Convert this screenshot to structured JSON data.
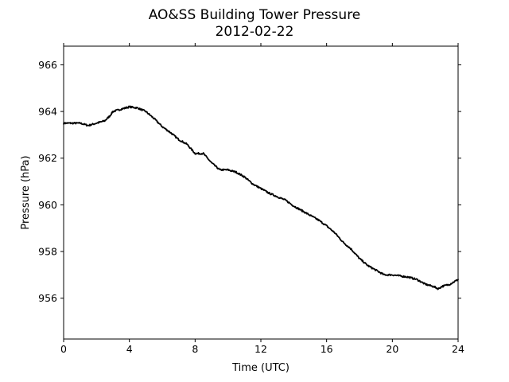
{
  "chart_data": {
    "type": "line",
    "title": "AO&SS Building Tower Pressure",
    "subtitle": "2012-02-22",
    "xlabel": "Time (UTC)",
    "ylabel": "Pressure (hPa)",
    "xlim": [
      0,
      24
    ],
    "ylim": [
      954.25,
      966.8
    ],
    "xticks": [
      0,
      4,
      8,
      12,
      16,
      20,
      24
    ],
    "xtick_labels": [
      "0",
      "4",
      "8",
      "12",
      "16",
      "20",
      "24"
    ],
    "yticks": [
      956,
      958,
      960,
      962,
      964,
      966
    ],
    "ytick_labels": [
      "956",
      "958",
      "960",
      "962",
      "964",
      "966"
    ],
    "grid": false,
    "legend": "none",
    "line_color": "#000000",
    "series": [
      {
        "x": [
          0,
          0.5,
          1.0,
          1.5,
          2.0,
          2.5,
          2.8,
          3.0,
          3.5,
          4.0,
          4.5,
          5.0,
          5.5,
          6.0,
          6.5,
          7.0,
          7.5,
          8.0,
          8.5,
          9.0,
          9.5,
          10.0,
          10.5,
          11.0,
          11.5,
          12.0,
          12.5,
          13.0,
          13.5,
          14.0,
          14.5,
          15.0,
          15.5,
          16.0,
          16.5,
          17.0,
          17.5,
          18.0,
          18.5,
          19.0,
          19.5,
          20.0,
          20.5,
          21.0,
          21.5,
          22.0,
          22.5,
          22.8,
          23.0,
          23.5,
          24.0
        ],
        "y": [
          963.5,
          963.5,
          963.5,
          963.4,
          963.5,
          963.6,
          963.8,
          964.0,
          964.1,
          964.2,
          964.15,
          964.0,
          963.7,
          963.35,
          963.1,
          962.8,
          962.6,
          962.2,
          962.2,
          961.8,
          961.5,
          961.5,
          961.4,
          961.2,
          960.9,
          960.7,
          960.5,
          960.35,
          960.2,
          959.95,
          959.75,
          959.55,
          959.35,
          959.1,
          958.8,
          958.4,
          958.1,
          957.7,
          957.4,
          957.2,
          957.0,
          957.0,
          956.95,
          956.9,
          956.8,
          956.6,
          956.5,
          956.4,
          956.5,
          956.6,
          956.8
        ]
      }
    ]
  }
}
